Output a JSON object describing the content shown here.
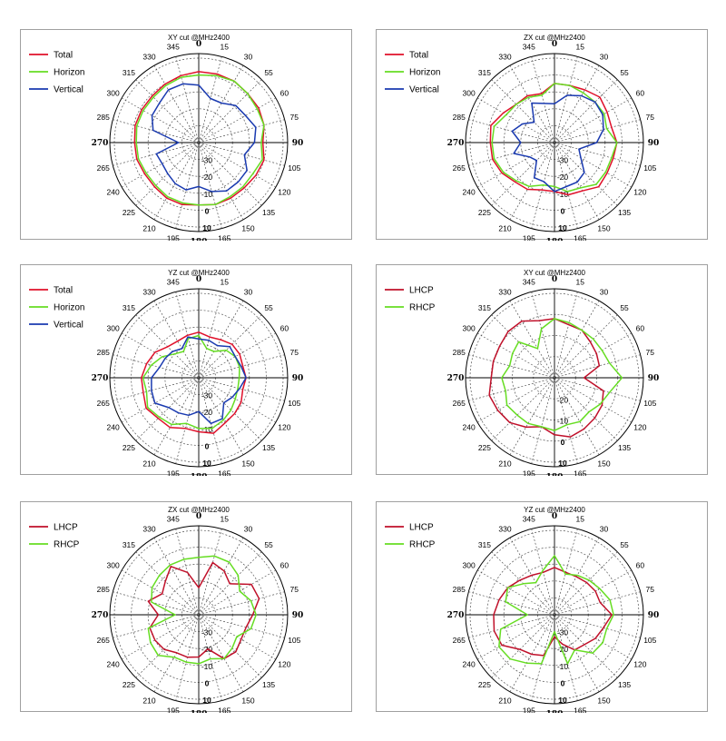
{
  "chart_data": [
    {
      "type": "polar-line",
      "title": "XY cut @MHz2400",
      "theta_labels": [
        "0",
        "15",
        "30",
        "55",
        "60",
        "75",
        "90",
        "105",
        "120",
        "135",
        "150",
        "165",
        "180",
        "195",
        "210",
        "225",
        "240",
        "265",
        "270",
        "285",
        "300",
        "315",
        "330",
        "345"
      ],
      "r_labels": [
        "-30",
        "-20",
        "-10",
        "0",
        "10"
      ],
      "rlim": [
        -40,
        10
      ],
      "series": [
        {
          "name": "Total",
          "color": "#e0102a",
          "values": [
            2,
            2,
            2,
            1,
            1,
            0,
            -2,
            0,
            -1,
            -2,
            -2,
            -2,
            -3,
            -2,
            -2,
            -3,
            -3,
            -2,
            -2,
            -1,
            -1,
            -1,
            0,
            1
          ]
        },
        {
          "name": "Horizon",
          "color": "#66dd22",
          "values": [
            0,
            1,
            2,
            1,
            0,
            0,
            -3,
            -1,
            -3,
            -3,
            -3,
            -2,
            -3,
            -3,
            -3,
            -4,
            -4,
            -3,
            -3,
            -2,
            -2,
            -2,
            -1,
            0
          ]
        },
        {
          "name": "Vertical",
          "color": "#1a3ab0",
          "values": [
            -6,
            -13,
            -13,
            -9,
            -8,
            -5,
            -7,
            -12,
            -7,
            -7,
            -7,
            -10,
            -14,
            -11,
            -12,
            -14,
            -15,
            -14,
            -28,
            -12,
            -8,
            -7,
            -4,
            -4
          ]
        }
      ]
    },
    {
      "type": "polar-line",
      "title": "ZX cut @MHz2400",
      "theta_labels": [
        "0",
        "15",
        "30",
        "55",
        "60",
        "75",
        "90",
        "105",
        "120",
        "135",
        "150",
        "165",
        "180",
        "195",
        "210",
        "225",
        "240",
        "265",
        "270",
        "285",
        "300",
        "315",
        "330",
        "345"
      ],
      "r_labels": [
        "-30",
        "-20",
        "-10",
        "0",
        "10"
      ],
      "rlim": [
        -40,
        10
      ],
      "series": [
        {
          "name": "Total",
          "color": "#e0102a",
          "values": [
            -5,
            -5,
            -4,
            -2,
            -4,
            -5,
            -3,
            -4,
            -4,
            -3,
            -7,
            -8,
            -11,
            -11,
            -8,
            -7,
            -4,
            -2,
            -2,
            -1,
            -5,
            -8,
            -8,
            -10
          ]
        },
        {
          "name": "Horizon",
          "color": "#66dd22",
          "values": [
            -5,
            -5,
            -6,
            -6,
            -6,
            -8,
            -3,
            -5,
            -5,
            -5,
            -9,
            -10,
            -14,
            -14,
            -10,
            -8,
            -5,
            -3,
            -3,
            -3,
            -7,
            -8,
            -9,
            -11
          ]
        },
        {
          "name": "Vertical",
          "color": "#1a3ab0",
          "values": [
            -17,
            -11,
            -8,
            -6,
            -7,
            -10,
            -15,
            -25,
            -22,
            -15,
            -13,
            -13,
            -11,
            -16,
            -16,
            -25,
            -23,
            -15,
            -20,
            -14,
            -18,
            -23,
            -13,
            -16
          ]
        }
      ]
    },
    {
      "type": "polar-line",
      "title": "YZ cut @MHz2400",
      "theta_labels": [
        "0",
        "15",
        "30",
        "55",
        "60",
        "75",
        "90",
        "105",
        "120",
        "135",
        "150",
        "165",
        "180",
        "195",
        "210",
        "225",
        "240",
        "265",
        "270",
        "285",
        "300",
        "315",
        "330",
        "345"
      ],
      "r_labels": [
        "-30",
        "-20",
        "-10",
        "0",
        "10"
      ],
      "rlim": [
        -40,
        10
      ],
      "series": [
        {
          "name": "Total",
          "color": "#e0102a",
          "values": [
            -13,
            -15,
            -14,
            -12,
            -12,
            -13,
            -12,
            -13,
            -11,
            -10,
            -9,
            -6,
            -8,
            -9,
            -6,
            -6,
            -4,
            -6,
            -6,
            -8,
            -10,
            -14,
            -15,
            -14
          ]
        },
        {
          "name": "Horizon",
          "color": "#66dd22",
          "values": [
            -15,
            -22,
            -22,
            -17,
            -15,
            -15,
            -16,
            -16,
            -15,
            -13,
            -11,
            -9,
            -10,
            -12,
            -8,
            -7,
            -5,
            -8,
            -7,
            -11,
            -15,
            -20,
            -22,
            -16
          ]
        },
        {
          "name": "Vertical",
          "color": "#1a3ab0",
          "values": [
            -17,
            -17,
            -18,
            -14,
            -15,
            -14,
            -12,
            -15,
            -17,
            -19,
            -12,
            -12,
            -20,
            -17,
            -16,
            -15,
            -10,
            -11,
            -12,
            -16,
            -17,
            -18,
            -20,
            -15
          ]
        }
      ]
    },
    {
      "type": "polar-line",
      "title": "XY cut @MHz2400",
      "theta_labels": [
        "0",
        "15",
        "30",
        "55",
        "60",
        "75",
        "90",
        "105",
        "120",
        "135",
        "150",
        "165",
        "180",
        "195",
        "210",
        "225",
        "240",
        "265",
        "270",
        "285",
        "300",
        "315",
        "330",
        "345"
      ],
      "r_labels": [
        "-20",
        "-10",
        "0",
        "10"
      ],
      "rlim": [
        -30,
        10
      ],
      "series": [
        {
          "name": "LHCP",
          "color": "#c0102a",
          "values": [
            -2,
            -4,
            -4,
            -6,
            -7,
            -8,
            -16,
            -6,
            -4,
            -3,
            -2,
            -1,
            -3,
            -6,
            -3,
            0,
            1,
            2,
            0,
            0,
            0,
            1,
            1,
            -2
          ]
        },
        {
          "name": "RHCP",
          "color": "#66dd22",
          "values": [
            -2,
            -3,
            -4,
            -4,
            -4,
            -3,
            2,
            -3,
            -5,
            -7,
            -6,
            -7,
            -5,
            -6,
            -5,
            -5,
            -4,
            -6,
            -5,
            -8,
            -7,
            -6,
            -14,
            -6
          ]
        }
      ]
    },
    {
      "type": "polar-line",
      "title": "ZX cut @MHz2400",
      "theta_labels": [
        "0",
        "15",
        "30",
        "55",
        "60",
        "75",
        "90",
        "105",
        "120",
        "135",
        "150",
        "165",
        "180",
        "195",
        "210",
        "225",
        "240",
        "265",
        "270",
        "285",
        "300",
        "315",
        "330",
        "345"
      ],
      "r_labels": [
        "-30",
        "-20",
        "-10",
        "0",
        "10"
      ],
      "rlim": [
        -40,
        10
      ],
      "series": [
        {
          "name": "LHCP",
          "color": "#c0102a",
          "values": [
            -24,
            -8,
            -10,
            -14,
            -4,
            -3,
            -8,
            -11,
            -11,
            -9,
            -10,
            -19,
            -15,
            -14,
            -14,
            -11,
            -10,
            -10,
            -16,
            -9,
            -15,
            -12,
            -7,
            -14
          ]
        },
        {
          "name": "RHCP",
          "color": "#66dd22",
          "values": [
            -6,
            -4,
            -4,
            -7,
            -12,
            -8,
            -6,
            -8,
            -14,
            -12,
            -10,
            -13,
            -11,
            -11,
            -11,
            -6,
            -7,
            -9,
            -26,
            -11,
            -8,
            -7,
            -6,
            -6
          ]
        }
      ]
    },
    {
      "type": "polar-line",
      "title": "YZ cut @MHz2400",
      "theta_labels": [
        "0",
        "15",
        "30",
        "55",
        "60",
        "75",
        "90",
        "105",
        "120",
        "135",
        "150",
        "165",
        "180",
        "195",
        "210",
        "225",
        "240",
        "265",
        "270",
        "285",
        "300",
        "315",
        "330",
        "345"
      ],
      "r_labels": [
        "-30",
        "-20",
        "-10",
        "0",
        "10"
      ],
      "rlim": [
        -40,
        10
      ],
      "series": [
        {
          "name": "LHCP",
          "color": "#c0102a",
          "values": [
            -12,
            -14,
            -14,
            -13,
            -12,
            -12,
            -6,
            -10,
            -12,
            -15,
            -16,
            -22,
            -27,
            -15,
            -13,
            -11,
            -4,
            -3,
            -4,
            -6,
            -8,
            -11,
            -13,
            -14
          ]
        },
        {
          "name": "RHCP",
          "color": "#66dd22",
          "values": [
            -5,
            -15,
            -13,
            -11,
            -9,
            -6,
            -5,
            -8,
            -7,
            -8,
            -16,
            -10,
            -30,
            -10,
            -7,
            -3,
            -2,
            -7,
            -24,
            -10,
            -8,
            -14,
            -18,
            -13
          ]
        }
      ]
    }
  ]
}
